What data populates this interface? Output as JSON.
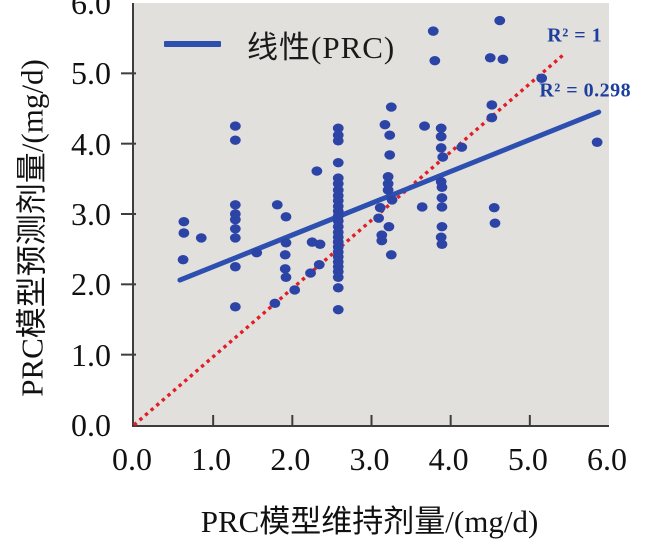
{
  "chart_data": {
    "type": "scatter",
    "title": "",
    "xlabel": "PRC模型维持剂量/(mg/d)",
    "ylabel": "PRC模型预测剂量/(mg/d)",
    "xlim": [
      0,
      6
    ],
    "ylim": [
      0,
      6
    ],
    "grid": false,
    "legend_position": "top-left-inside",
    "legend": {
      "label": "线性(PRC)"
    },
    "xticks": {
      "values": [
        0,
        1,
        2,
        3,
        4,
        5,
        6
      ],
      "labels": [
        "0.0",
        "1.0",
        "2.0",
        "3.0",
        "4.0",
        "5.0",
        "6.0"
      ]
    },
    "yticks": {
      "values": [
        0,
        1,
        2,
        3,
        4,
        5,
        6
      ],
      "labels": [
        "0.0",
        "1.0",
        "2.0",
        "3.0",
        "4.0",
        "5.0",
        "6.0"
      ]
    },
    "colors": {
      "points": "#2c44a6",
      "trend_line": "#2d4fb0",
      "identity_line": "#e21d25",
      "annotation": "#1c3f9e",
      "plot_background": "#e2e0dd",
      "axis": "#3d3d3d"
    },
    "series": [
      {
        "name": "PRC",
        "points": [
          [
            0.63,
            2.89
          ],
          [
            0.63,
            2.73
          ],
          [
            0.62,
            2.35
          ],
          [
            0.85,
            2.66
          ],
          [
            1.28,
            4.25
          ],
          [
            1.28,
            4.05
          ],
          [
            1.28,
            3.13
          ],
          [
            1.28,
            3.0
          ],
          [
            1.28,
            2.92
          ],
          [
            1.28,
            2.79
          ],
          [
            1.28,
            2.66
          ],
          [
            1.28,
            2.25
          ],
          [
            1.28,
            1.68
          ],
          [
            1.55,
            2.45
          ],
          [
            1.81,
            3.13
          ],
          [
            1.78,
            1.73
          ],
          [
            1.92,
            2.96
          ],
          [
            1.92,
            2.59
          ],
          [
            1.91,
            2.42
          ],
          [
            1.91,
            2.22
          ],
          [
            1.92,
            2.1
          ],
          [
            2.03,
            1.92
          ],
          [
            2.31,
            3.61
          ],
          [
            2.25,
            2.6
          ],
          [
            2.35,
            2.57
          ],
          [
            2.34,
            2.28
          ],
          [
            2.23,
            2.16
          ],
          [
            2.58,
            4.22
          ],
          [
            2.58,
            4.12
          ],
          [
            2.58,
            4.04
          ],
          [
            2.58,
            3.73
          ],
          [
            2.58,
            3.51
          ],
          [
            2.58,
            3.43
          ],
          [
            2.58,
            3.34
          ],
          [
            2.58,
            3.26
          ],
          [
            2.58,
            3.19
          ],
          [
            2.58,
            3.11
          ],
          [
            2.58,
            3.04
          ],
          [
            2.58,
            2.97
          ],
          [
            2.58,
            2.9
          ],
          [
            2.58,
            2.82
          ],
          [
            2.58,
            2.74
          ],
          [
            2.58,
            2.67
          ],
          [
            2.58,
            2.6
          ],
          [
            2.58,
            2.53
          ],
          [
            2.58,
            2.46
          ],
          [
            2.58,
            2.39
          ],
          [
            2.58,
            2.32
          ],
          [
            2.58,
            2.25
          ],
          [
            2.58,
            2.18
          ],
          [
            2.58,
            2.1
          ],
          [
            2.58,
            1.95
          ],
          [
            2.58,
            1.64
          ],
          [
            3.25,
            4.52
          ],
          [
            3.17,
            4.27
          ],
          [
            3.23,
            4.12
          ],
          [
            3.23,
            3.84
          ],
          [
            3.21,
            3.53
          ],
          [
            3.21,
            3.43
          ],
          [
            3.21,
            3.34
          ],
          [
            3.26,
            3.2
          ],
          [
            3.11,
            3.09
          ],
          [
            3.09,
            2.94
          ],
          [
            3.22,
            2.82
          ],
          [
            3.13,
            2.7
          ],
          [
            3.13,
            2.62
          ],
          [
            3.25,
            2.42
          ],
          [
            3.64,
            3.1
          ],
          [
            3.67,
            4.25
          ],
          [
            3.88,
            4.22
          ],
          [
            3.88,
            4.1
          ],
          [
            3.88,
            3.94
          ],
          [
            3.9,
            3.81
          ],
          [
            3.88,
            3.46
          ],
          [
            3.89,
            3.38
          ],
          [
            3.89,
            3.23
          ],
          [
            3.89,
            3.1
          ],
          [
            3.89,
            2.82
          ],
          [
            3.88,
            2.67
          ],
          [
            3.89,
            2.57
          ],
          [
            4.14,
            3.95
          ],
          [
            3.78,
            5.6
          ],
          [
            3.8,
            5.18
          ],
          [
            4.62,
            5.75
          ],
          [
            4.5,
            5.22
          ],
          [
            4.66,
            5.2
          ],
          [
            5.15,
            4.93
          ],
          [
            4.52,
            4.55
          ],
          [
            4.52,
            4.37
          ],
          [
            4.55,
            3.09
          ],
          [
            4.56,
            2.87
          ],
          [
            5.85,
            4.02
          ]
        ]
      }
    ],
    "trend_line": {
      "label": "线性(PRC)",
      "x1": 0.58,
      "y1": 2.06,
      "x2": 5.87,
      "y2": 4.45,
      "r_squared": 0.298
    },
    "identity_line": {
      "x1": 0,
      "y1": 0,
      "x2": 5.44,
      "y2": 5.28,
      "r_squared": 1
    },
    "annotations": [
      {
        "text": "R² = 1",
        "x": 5.22,
        "y": 5.53
      },
      {
        "text": "R² = 0.298",
        "x": 5.12,
        "y": 4.75
      }
    ]
  }
}
